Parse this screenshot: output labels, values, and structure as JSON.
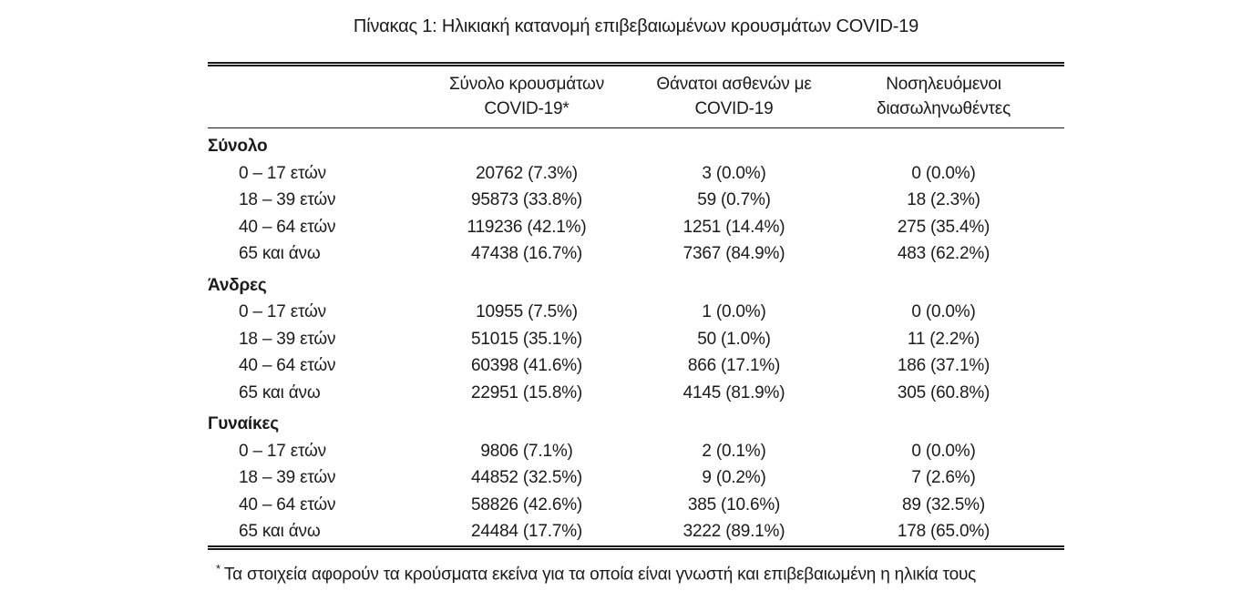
{
  "colors": {
    "text": "#1b1b1b",
    "background": "#ffffff"
  },
  "title": "Πίνακας 1: Ηλικιακή κατανομή επιβεβαιωμένων κρουσμάτων COVID-19",
  "table": {
    "headers": {
      "cases": {
        "line1": "Σύνολο κρουσμάτων",
        "line2": "COVID-19*"
      },
      "deaths": {
        "line1": "Θάνατοι ασθενών με",
        "line2": "COVID-19"
      },
      "intubated": {
        "line1": "Νοσηλευόμενοι",
        "line2": "διασωληνωθέντες"
      }
    },
    "groups": [
      {
        "label": "Σύνολο",
        "rows": [
          {
            "label": "0 – 17 ετών",
            "cases": "20762 (7.3%)",
            "deaths": "3 (0.0%)",
            "intubated": "0 (0.0%)"
          },
          {
            "label": "18 – 39 ετών",
            "cases": "95873 (33.8%)",
            "deaths": "59 (0.7%)",
            "intubated": "18 (2.3%)"
          },
          {
            "label": "40 – 64 ετών",
            "cases": "119236 (42.1%)",
            "deaths": "1251 (14.4%)",
            "intubated": "275 (35.4%)"
          },
          {
            "label": "65 και άνω",
            "cases": "47438 (16.7%)",
            "deaths": "7367 (84.9%)",
            "intubated": "483 (62.2%)"
          }
        ]
      },
      {
        "label": "Άνδρες",
        "rows": [
          {
            "label": "0 – 17 ετών",
            "cases": "10955 (7.5%)",
            "deaths": "1 (0.0%)",
            "intubated": "0 (0.0%)"
          },
          {
            "label": "18 – 39 ετών",
            "cases": "51015 (35.1%)",
            "deaths": "50 (1.0%)",
            "intubated": "11 (2.2%)"
          },
          {
            "label": "40 – 64 ετών",
            "cases": "60398 (41.6%)",
            "deaths": "866 (17.1%)",
            "intubated": "186 (37.1%)"
          },
          {
            "label": "65 και άνω",
            "cases": "22951 (15.8%)",
            "deaths": "4145 (81.9%)",
            "intubated": "305 (60.8%)"
          }
        ]
      },
      {
        "label": "Γυναίκες",
        "rows": [
          {
            "label": "0 – 17 ετών",
            "cases": "9806 (7.1%)",
            "deaths": "2 (0.1%)",
            "intubated": "0 (0.0%)"
          },
          {
            "label": "18 – 39 ετών",
            "cases": "44852 (32.5%)",
            "deaths": "9 (0.2%)",
            "intubated": "7 (2.6%)"
          },
          {
            "label": "40 – 64 ετών",
            "cases": "58826 (42.6%)",
            "deaths": "385 (10.6%)",
            "intubated": "89 (32.5%)"
          },
          {
            "label": "65 και άνω",
            "cases": "24484 (17.7%)",
            "deaths": "3222 (89.1%)",
            "intubated": "178 (65.0%)"
          }
        ]
      }
    ]
  },
  "footnote": {
    "marker": "*",
    "text": "Τα στοιχεία αφορούν τα κρούσματα εκείνα για τα οποία είναι γνωστή και επιβεβαιωμένη η ηλικία τους"
  }
}
